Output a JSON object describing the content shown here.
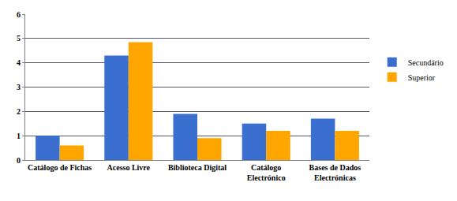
{
  "chart_data": {
    "type": "bar",
    "categories": [
      "Catálogo de Fichas",
      "Acesso Livre",
      "Biblioteca Digital",
      "Catálogo Electrónico",
      "Bases de Dados Electrónicas"
    ],
    "series": [
      {
        "name": "Secundário",
        "color": "#3a6fcf",
        "values": [
          1.0,
          4.3,
          1.9,
          1.5,
          1.7
        ]
      },
      {
        "name": "Superior",
        "color": "#ffa500",
        "values": [
          0.6,
          4.85,
          0.9,
          1.2,
          1.2
        ]
      }
    ],
    "ylim": [
      0,
      6
    ],
    "yticks": [
      0,
      1,
      2,
      3,
      4,
      5,
      6
    ],
    "grid": true,
    "legend": "right"
  }
}
